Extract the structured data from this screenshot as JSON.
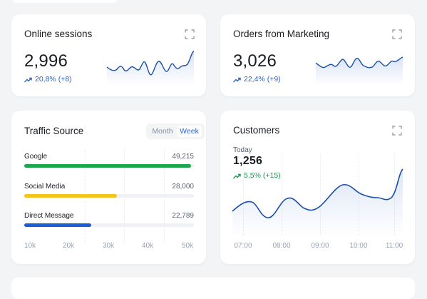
{
  "online_sessions": {
    "title": "Online sessions",
    "value": "2,996",
    "delta": "20,8% (+8)"
  },
  "orders_marketing": {
    "title": "Orders from Marketing",
    "value": "3,026",
    "delta": "22,4% (+9)"
  },
  "traffic_source": {
    "title": "Traffic Source",
    "toggle": {
      "month": "Month",
      "week": "Week",
      "active": "Week"
    },
    "items": [
      {
        "label": "Google",
        "value": "49,215",
        "fraction": 0.985,
        "color": "#1aa84f"
      },
      {
        "label": "Social Media",
        "value": "28,000",
        "fraction": 0.545,
        "color": "#f5c518"
      },
      {
        "label": "Direct Message",
        "value": "22,789",
        "fraction": 0.395,
        "color": "#1a5fd6"
      }
    ],
    "axis": [
      "10k",
      "20k",
      "30k",
      "40k",
      "50k"
    ]
  },
  "customers": {
    "title": "Customers",
    "period": "Today",
    "value": "1,256",
    "delta": "5,5% (+15)",
    "chart_data": {
      "type": "line",
      "x": [
        "07:00",
        "08:00",
        "09:00",
        "10:00",
        "11:00"
      ],
      "color": "#1a4fa8"
    }
  },
  "colors": {
    "accent_blue": "#2d63c8",
    "positive_green": "#1a9a54",
    "line_blue": "#1a4fa8"
  }
}
